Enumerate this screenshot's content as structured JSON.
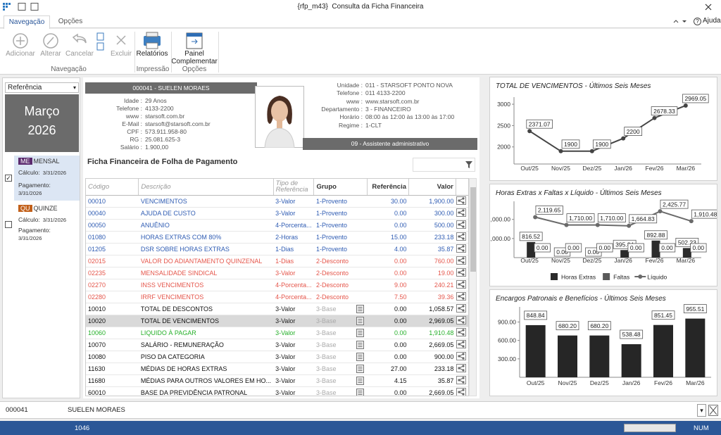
{
  "window": {
    "title": "{rfp_m43}  Consulta da Ficha Financeira",
    "help": "Ajuda"
  },
  "tabs": [
    "Navegação",
    "Opções"
  ],
  "ribbon": {
    "buttons": [
      "Adicionar",
      "Alterar",
      "Cancelar",
      "Excluir",
      "Relatórios",
      "Painel Complementar"
    ],
    "groups": [
      "Navegação",
      "Impressão",
      "Opções"
    ]
  },
  "left": {
    "selector": "Referência",
    "month": "Março",
    "year": "2026",
    "items": [
      {
        "code": "ME",
        "name": "MENSAL",
        "calc_label": "Cálculo:",
        "calc": "3/31/2026",
        "pay_label": "Pagamento:",
        "pay": "3/31/2026",
        "checked": true,
        "badge_color": "#5b2a6e"
      },
      {
        "code": "QU",
        "name": "QUINZE",
        "calc_label": "Cálculo:",
        "calc": "3/31/2026",
        "pay_label": "Pagamento:",
        "pay": "3/31/2026",
        "checked": false,
        "badge_color": "#c2601a"
      }
    ]
  },
  "employee": {
    "header": "000041 - SUELEN MORAES",
    "fields": [
      [
        "Idade :",
        "29 Anos"
      ],
      [
        "Telefone :",
        "4133-2200"
      ],
      [
        "www :",
        "starsoft.com.br"
      ],
      [
        "E-Mail :",
        "starsoft@starsoft.com.br"
      ],
      [
        "CPF :",
        "573.911.958-80"
      ],
      [
        "RG :",
        "25.081.625-3"
      ],
      [
        "Salário :",
        "1.900,00"
      ]
    ],
    "company": [
      [
        "Unidade :",
        "011 - STARSOFT PONTO NOVA"
      ],
      [
        "Telefone :",
        "011 4133-2200"
      ],
      [
        "www :",
        "www.starsoft.com.br"
      ],
      [
        "Departamento :",
        "3 - FINANCEIRO"
      ],
      [
        "Horário :",
        "08:00 às 12:00 às 13:00 às 17:00"
      ],
      [
        "Regime :",
        "1-CLT"
      ]
    ],
    "role": "09 - Assistente administrativo"
  },
  "table": {
    "title": "Ficha Financeira de Folha de Pagamento",
    "header": [
      "Código",
      "Descrição",
      "Tipo de Referência",
      "Grupo",
      "Referência",
      "Valor"
    ],
    "rows": [
      {
        "cells": [
          "00010",
          "VENCIMENTOS",
          "3-Valor",
          "1-Provento",
          "30.00",
          "1,900.00"
        ],
        "color": "#2f5cb3"
      },
      {
        "cells": [
          "00040",
          "AJUDA DE CUSTO",
          "3-Valor",
          "1-Provento",
          "0.00",
          "300.00"
        ],
        "color": "#2f5cb3"
      },
      {
        "cells": [
          "00050",
          "ANUÊNIO",
          "4-Porcenta...",
          "1-Provento",
          "0.00",
          "500.00"
        ],
        "color": "#2f5cb3"
      },
      {
        "cells": [
          "01080",
          "HORAS EXTRAS COM 80%",
          "2-Horas",
          "1-Provento",
          "15.00",
          "233.18"
        ],
        "color": "#2f5cb3"
      },
      {
        "cells": [
          "01205",
          "DSR SOBRE HORAS EXTRAS",
          "1-Dias",
          "1-Provento",
          "4.00",
          "35.87"
        ],
        "color": "#2f5cb3"
      },
      {
        "cells": [
          "02015",
          "VALOR DO ADIANTAMENTO QUINZENAL",
          "1-Dias",
          "2-Desconto",
          "0.00",
          "760.00"
        ],
        "color": "#e5564b"
      },
      {
        "cells": [
          "02235",
          "MENSALIDADE SINDICAL",
          "3-Valor",
          "2-Desconto",
          "0.00",
          "19.00"
        ],
        "color": "#e5564b"
      },
      {
        "cells": [
          "02270",
          "INSS VENCIMENTOS",
          "4-Porcenta...",
          "2-Desconto",
          "9.00",
          "240.21"
        ],
        "color": "#e5564b"
      },
      {
        "cells": [
          "02280",
          "IRRF VENCIMENTOS",
          "4-Porcenta...",
          "2-Desconto",
          "7.50",
          "39.36"
        ],
        "color": "#e5564b"
      },
      {
        "cells": [
          "10010",
          "TOTAL DE DESCONTOS",
          "3-Valor",
          "3-Base",
          "0.00",
          "1,058.57"
        ],
        "color": "#111111"
      },
      {
        "cells": [
          "10020",
          "TOTAL DE VENCIMENTOS",
          "3-Valor",
          "3-Base",
          "0.00",
          "2,969.05"
        ],
        "color": "#111111",
        "selected": true
      },
      {
        "cells": [
          "10060",
          "LIQUIDO À PAGAR",
          "3-Valor",
          "3-Base",
          "0.00",
          "1,910.48"
        ],
        "color": "#26b02a"
      },
      {
        "cells": [
          "10070",
          "SALÁRIO - REMUNERAÇÃO",
          "3-Valor",
          "3-Base",
          "0.00",
          "2,669.05"
        ],
        "color": "#111111"
      },
      {
        "cells": [
          "10080",
          "PISO DA CATEGORIA",
          "3-Valor",
          "3-Base",
          "0.00",
          "900.00"
        ],
        "color": "#111111"
      },
      {
        "cells": [
          "11630",
          "MÉDIAS DE HORAS EXTRAS",
          "3-Valor",
          "3-Base",
          "27.00",
          "233.18"
        ],
        "color": "#111111"
      },
      {
        "cells": [
          "11680",
          "MÉDIAS PARA OUTROS VALORES EM HO...",
          "3-Valor",
          "3-Base",
          "4.15",
          "35.87"
        ],
        "color": "#111111"
      },
      {
        "cells": [
          "60010",
          "BASE DA PREVIDÊNCIA PATRONAL",
          "3-Valor",
          "3-Base",
          "0.00",
          "2,669.05"
        ],
        "color": "#111111"
      }
    ]
  },
  "charts": [
    {
      "type": "line",
      "title": "TOTAL DE VENCIMENTOS - Últimos Seis Meses",
      "categories": [
        "Out/25",
        "Nov/25",
        "Dez/25",
        "Jan/26",
        "Fev/26",
        "Mar/26"
      ],
      "values": [
        2371.07,
        1900,
        1900,
        2200,
        2678.33,
        2969.05
      ],
      "color": "#444444",
      "ylim": [
        1600,
        3100
      ],
      "yticks": [
        2000,
        2500,
        3000
      ]
    },
    {
      "type": "combo",
      "title": "Horas Extras x Faltas x Líquido - Últimos Seis Meses",
      "categories": [
        "Out/25",
        "Nov/25",
        "Dez/25",
        "Jan/26",
        "Fev/26",
        "Mar/26"
      ],
      "series": [
        {
          "name": "Horas Extras",
          "kind": "bar",
          "color": "#2b2b2b",
          "values": [
            816.52,
            0,
            0,
            395.84,
            892.88,
            502.23
          ],
          "value_labels": [
            "816.52",
            "0.00",
            "0.00",
            "395.84",
            "892.88",
            "502.23"
          ]
        },
        {
          "name": "Faltas",
          "kind": "bar",
          "color": "#5a5a5a",
          "values": [
            0,
            0,
            0,
            0,
            0,
            0
          ],
          "value_labels": [
            "0.00",
            "0.00",
            "0.00",
            "0.00",
            "0.00",
            "0.00"
          ]
        },
        {
          "name": "Líquido",
          "kind": "line",
          "color": "#6a6a6a",
          "values": [
            2119.65,
            1710,
            1710,
            1664.83,
            2425.77,
            1910.48
          ],
          "value_labels": [
            "2,119.65",
            "1,710.00",
            "1,710.00",
            "1,664.83",
            "2,425.77",
            "1,910.48"
          ]
        }
      ],
      "ylim": [
        0,
        2800
      ],
      "yticks": [
        {
          "value": 1000,
          "label": "1,000.00"
        },
        {
          "value": 2000,
          "label": "2,000.00"
        }
      ]
    },
    {
      "type": "bar",
      "title": "Encargos Patronais e Benefícios - Últimos Seis Meses",
      "categories": [
        "Out/25",
        "Nov/25",
        "Dez/25",
        "Jan/26",
        "Fev/26",
        "Mar/26"
      ],
      "values": [
        848.84,
        680.2,
        680.2,
        538.48,
        851.45,
        955.51
      ],
      "value_labels": [
        "848.84",
        "680.20",
        "680.20",
        "538.48",
        "851.45",
        "955.51"
      ],
      "color": "#262626",
      "ylim": [
        0,
        1100
      ],
      "yticks": [
        {
          "value": 300,
          "label": "300.00"
        },
        {
          "value": 600,
          "label": "600.00"
        },
        {
          "value": 900,
          "label": "900.00"
        }
      ]
    }
  ],
  "footer": {
    "code": "000041",
    "name": "SUELEN MORAES"
  },
  "status": {
    "record": "1046",
    "mode": "NUM"
  }
}
